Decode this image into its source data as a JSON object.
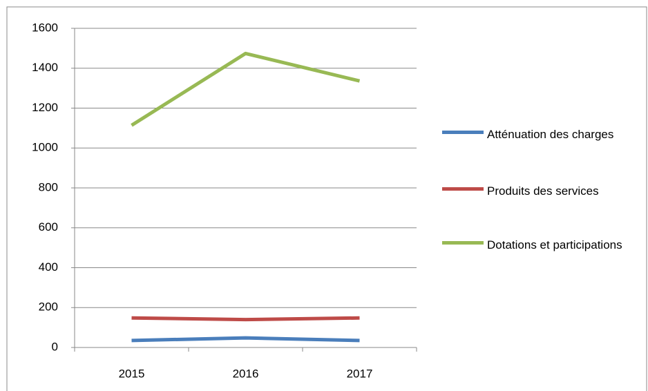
{
  "chart_data": {
    "type": "line",
    "categories": [
      "2015",
      "2016",
      "2017"
    ],
    "series": [
      {
        "name": "Atténuation des charges",
        "color": "#4a7ebb",
        "values": [
          35,
          48,
          35
        ]
      },
      {
        "name": "Produits des services",
        "color": "#be4b48",
        "values": [
          148,
          140,
          148
        ]
      },
      {
        "name": "Dotations et participations",
        "color": "#98b954",
        "values": [
          1114,
          1474,
          1336
        ]
      }
    ],
    "ylim": [
      0,
      1600
    ],
    "yticks": [
      0,
      200,
      400,
      600,
      800,
      1000,
      1200,
      1400,
      1600
    ],
    "grid": true,
    "legend": "right"
  }
}
